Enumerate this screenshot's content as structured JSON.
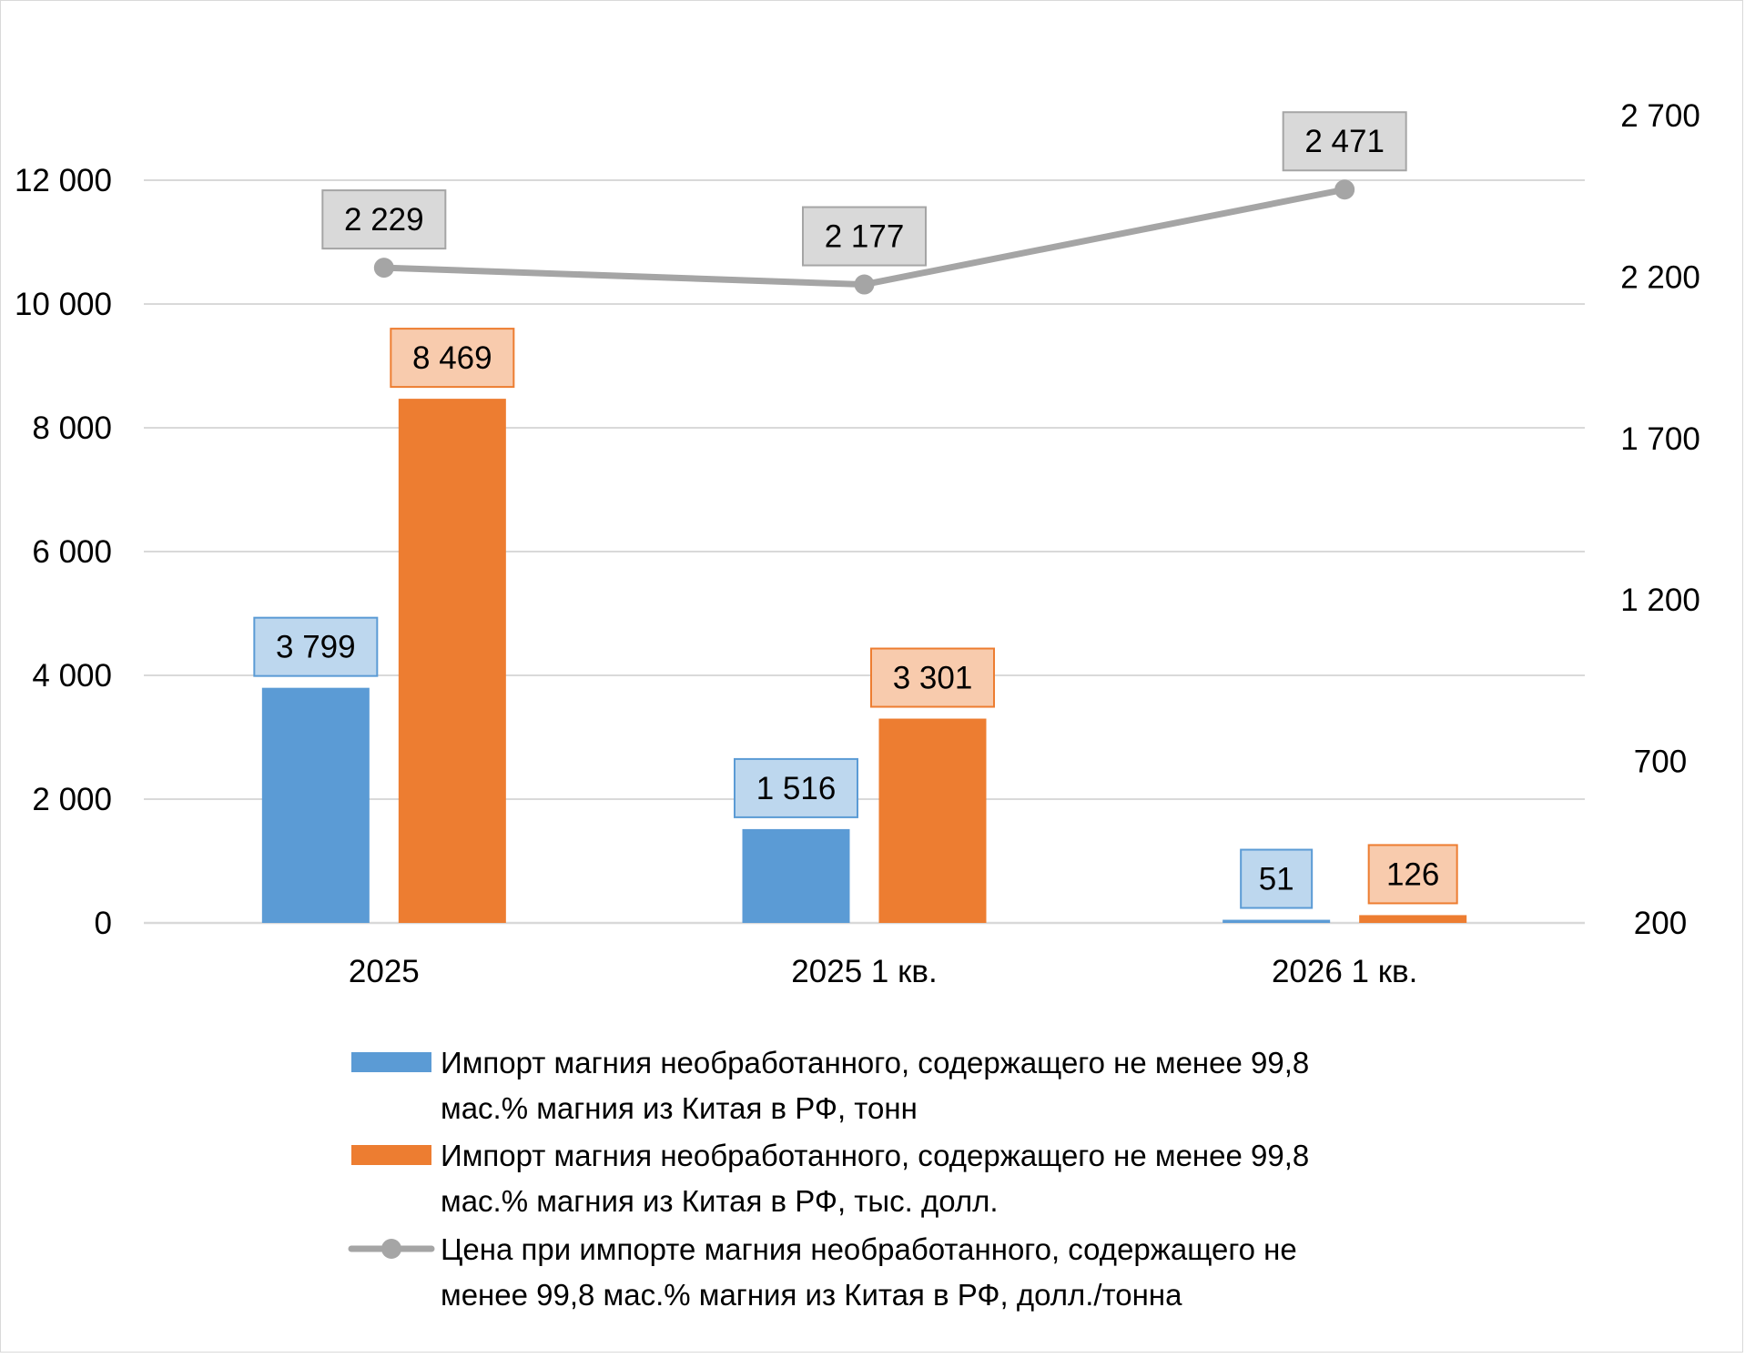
{
  "chart_data": {
    "type": "bar",
    "categories": [
      "2025",
      "2025 1 кв.",
      "2026 1 кв."
    ],
    "series": [
      {
        "name": "Импорт магния необработанного, содержащего не менее 99,8 мас.% магния из Китая в РФ, тонн",
        "legend_lines": [
          "Импорт магния необработанного, содержащего не менее 99,8",
          "мас.% магния из Китая в РФ, тонн"
        ],
        "type": "bar",
        "axis": "left",
        "color": "#5B9BD5",
        "label_fill": "#BDD7EE",
        "values": [
          3799,
          1516,
          51
        ],
        "labels": [
          "3 799",
          "1 516",
          "51"
        ]
      },
      {
        "name": "Импорт магния необработанного, содержащего не менее 99,8 мас.% магния из Китая в РФ, тыс. долл.",
        "legend_lines": [
          "Импорт магния необработанного, содержащего не менее 99,8",
          "мас.% магния из Китая в РФ, тыс. долл."
        ],
        "type": "bar",
        "axis": "left",
        "color": "#ED7D31",
        "label_fill": "#F8CBAD",
        "values": [
          8469,
          3301,
          126
        ],
        "labels": [
          "8 469",
          "3 301",
          "126"
        ]
      },
      {
        "name": "Цена при импорте магния необработанного, содержащего не менее 99,8 мас.% магния из Китая в РФ, долл./тонна",
        "legend_lines": [
          "Цена при импорте магния необработанного, содержащего не",
          "менее 99,8 мас.% магния из Китая в РФ, долл./тонна"
        ],
        "type": "line",
        "axis": "right",
        "color": "#A5A5A5",
        "label_fill": "#D9D9D9",
        "values": [
          2229,
          2177,
          2471
        ],
        "labels": [
          "2 229",
          "2 177",
          "2 471"
        ]
      }
    ],
    "y_left": {
      "min": 0,
      "max": 12000,
      "ticks": [
        0,
        2000,
        4000,
        6000,
        8000,
        10000,
        12000
      ],
      "tick_labels": [
        "0",
        "2 000",
        "4 000",
        "6 000",
        "8 000",
        "10 000",
        "12 000"
      ]
    },
    "y_right": {
      "min": 200,
      "max": 2700,
      "ticks": [
        200,
        700,
        1200,
        1700,
        2200,
        2700
      ],
      "tick_labels": [
        "200",
        "700",
        "1 200",
        "1 700",
        "2 200",
        "2 700"
      ]
    },
    "grid": true,
    "gridline_color": "#D9D9D9",
    "legend_position": "bottom"
  }
}
